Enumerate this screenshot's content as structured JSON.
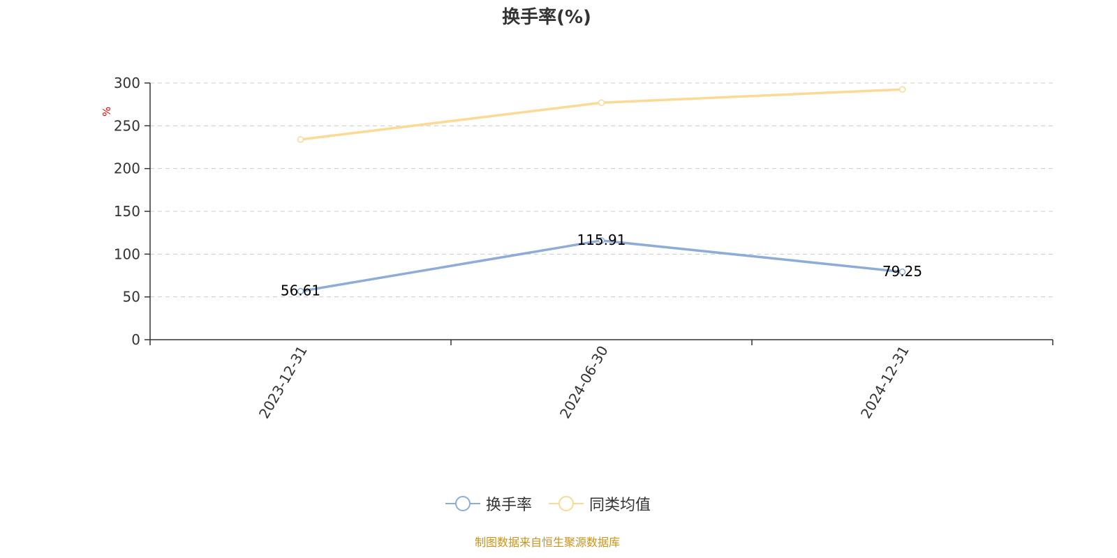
{
  "chart_data": {
    "type": "line",
    "title": "换手率(%)",
    "ylabel": "%",
    "xlabel": "",
    "categories": [
      "2023-12-31",
      "2024-06-30",
      "2024-12-31"
    ],
    "ylim": [
      0,
      300
    ],
    "yticks": [
      0,
      50,
      100,
      150,
      200,
      250,
      300
    ],
    "grid": true,
    "legend_position": "bottom",
    "series": [
      {
        "name": "换手率",
        "values": [
          56.61,
          115.91,
          79.25
        ],
        "data_labels": [
          "56.61",
          "115.91",
          "79.25"
        ],
        "color": "#8eacd8"
      },
      {
        "name": "同类均值",
        "values": [
          234.0,
          277.0,
          292.5
        ],
        "color": "#fcd995"
      }
    ]
  },
  "source_note": "制图数据来自恒生聚源数据库"
}
